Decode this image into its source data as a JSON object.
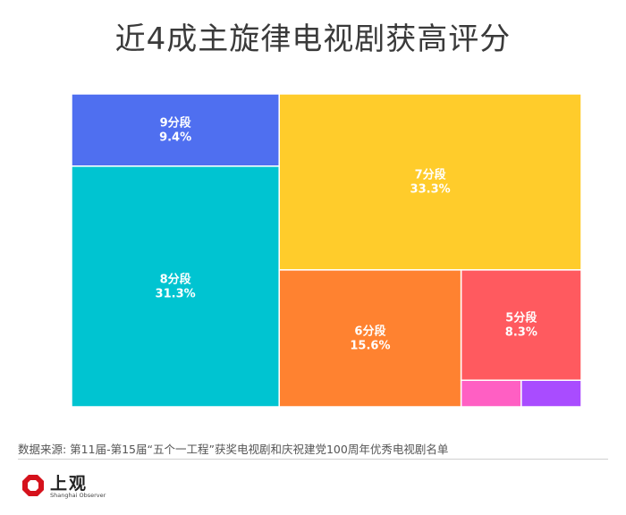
{
  "title": "近4成主旋律电视剧获高评分",
  "source": "数据来源: 第11届-第15届“五个一工程”获奖电视剧和庆祝建党100周年优秀电视剧名单",
  "logo": {
    "name": "上观",
    "subtitle": "Shanghai Observer"
  },
  "colors": {
    "9分段": "#4f6ff0",
    "8分段": "#00c4d1",
    "7分段": "#ffcc2b",
    "6分段": "#ff8230",
    "5分段": "#ff5a5f",
    "pink": "#ff5fc3",
    "purple": "#a94cff",
    "logo_red": "#d5121c"
  },
  "chart_data": {
    "type": "treemap",
    "items": [
      {
        "label": "9分段",
        "value": 9.4,
        "display": "9.4%"
      },
      {
        "label": "8分段",
        "value": 31.3,
        "display": "31.3%"
      },
      {
        "label": "7分段",
        "value": 33.3,
        "display": "33.3%"
      },
      {
        "label": "6分段",
        "value": 15.6,
        "display": "15.6%"
      },
      {
        "label": "5分段",
        "value": 8.3,
        "display": "8.3%"
      },
      {
        "label": "",
        "value": 1.0,
        "display": "",
        "color_key": "pink"
      },
      {
        "label": "",
        "value": 1.0,
        "display": "",
        "color_key": "purple"
      }
    ]
  }
}
